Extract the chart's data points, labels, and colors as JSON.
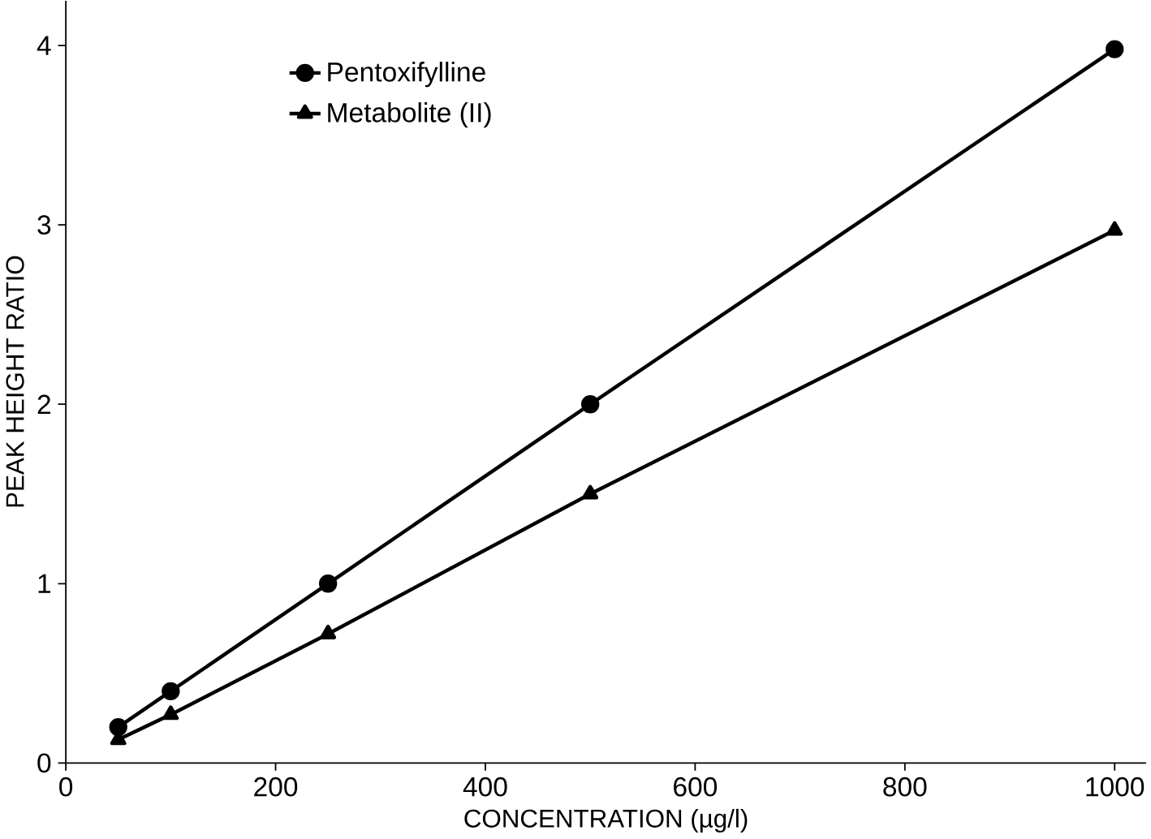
{
  "chart_data": {
    "type": "line",
    "xlabel": "CONCENTRATION (µg/l)",
    "ylabel": "PEAK HEIGHT RATIO",
    "x": [
      50,
      100,
      250,
      500,
      1000
    ],
    "series": [
      {
        "name": "Pentoxifylline",
        "color": "#000000",
        "marker": "circle",
        "values": [
          0.2,
          0.4,
          1.0,
          2.0,
          3.98
        ]
      },
      {
        "name": "Metabolite (II)",
        "color": "#000000",
        "marker": "triangle",
        "values": [
          0.13,
          0.27,
          0.72,
          1.5,
          2.97
        ]
      }
    ],
    "xlim": [
      0,
      1030
    ],
    "ylim": [
      0,
      4.25
    ],
    "xticks": [
      0,
      200,
      400,
      600,
      800,
      1000
    ],
    "yticks": [
      0,
      1,
      2,
      3,
      4
    ],
    "legend": "top left",
    "grid": false,
    "line_style": "solid"
  }
}
